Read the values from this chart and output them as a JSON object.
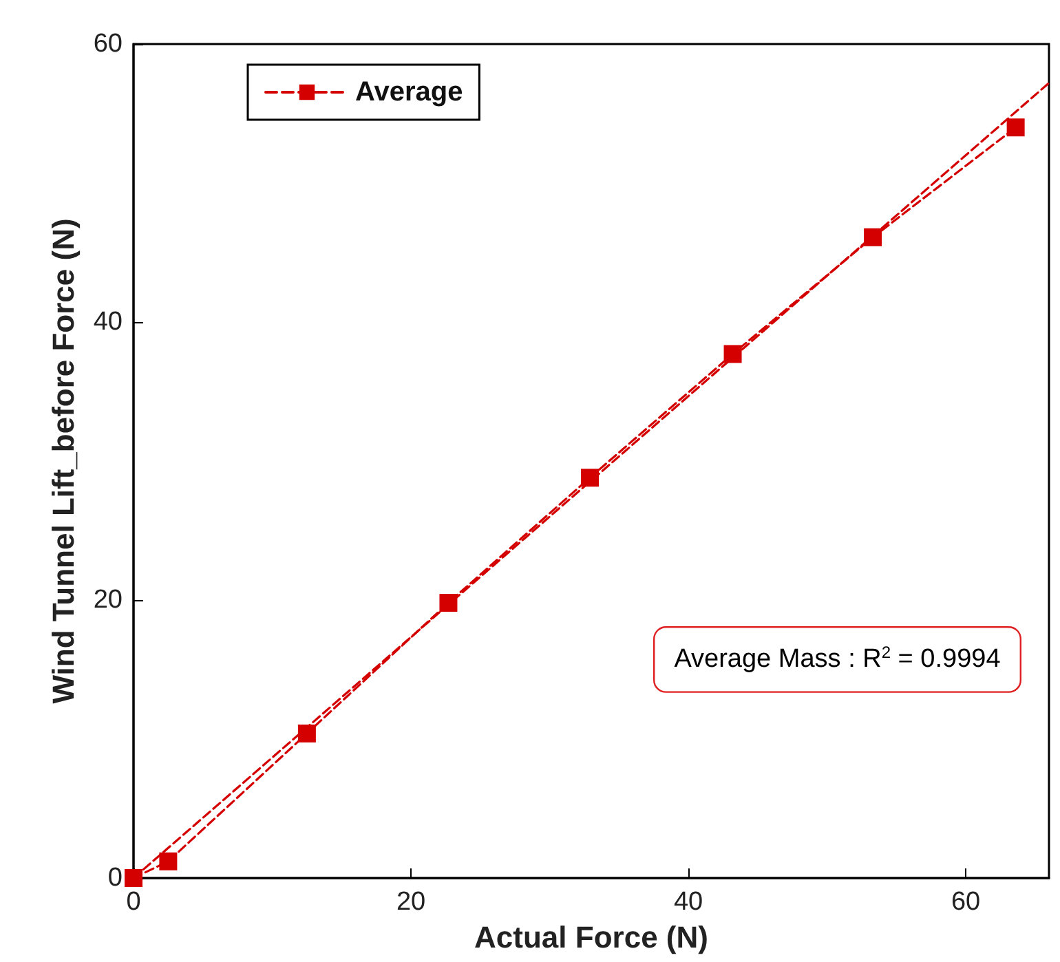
{
  "chart_data": {
    "type": "line",
    "xlabel": "Actual Force (N)",
    "ylabel": "Wind Tunnel Lift_before Force (N)",
    "x": [
      0,
      2.5,
      12.5,
      22.7,
      32.9,
      43.2,
      53.3,
      63.6
    ],
    "series": [
      {
        "name": "Average",
        "color": "#d40000",
        "values": [
          0,
          1.2,
          10.4,
          19.8,
          28.8,
          37.7,
          46.1,
          54.0
        ],
        "marker": "square",
        "line_style": "dashed"
      },
      {
        "type": "line",
        "x": [
          0,
          66
        ],
        "values": [
          0,
          57.2
        ],
        "color": "#d40000",
        "marker": "none",
        "line_style": "dashed"
      }
    ],
    "annotations": [
      "Average Mass : R$^{2}$ = 0.9994"
    ],
    "xlim": [
      0,
      66
    ],
    "xticks": [
      0,
      20,
      40,
      60
    ],
    "ylim": [
      0,
      60
    ],
    "yticks": [
      0,
      20,
      40,
      60
    ],
    "grid": false,
    "legend": "top left"
  }
}
